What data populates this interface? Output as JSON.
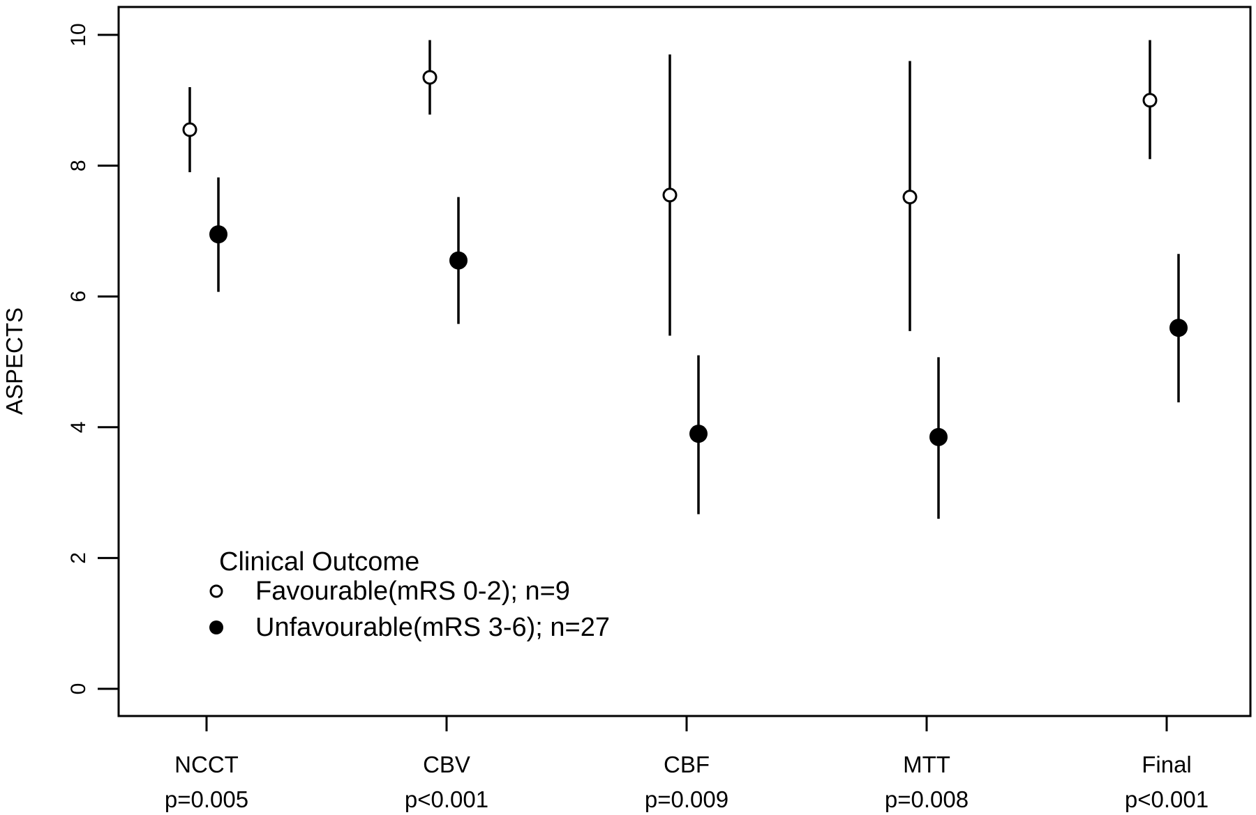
{
  "chart_data": {
    "type": "scatter",
    "title": "",
    "xlabel": "",
    "ylabel": "ASPECTS",
    "ylim": [
      0,
      10
    ],
    "yticks": [
      0,
      2,
      4,
      6,
      8,
      10
    ],
    "grid": false,
    "categories": [
      {
        "name": "NCCT",
        "pvalue": "p=0.005"
      },
      {
        "name": "CBV",
        "pvalue": "p<0.001"
      },
      {
        "name": "CBF",
        "pvalue": "p=0.009"
      },
      {
        "name": "MTT",
        "pvalue": "p=0.008"
      },
      {
        "name": "Final",
        "pvalue": "p<0.001"
      }
    ],
    "legend": {
      "title": "Clinical Outcome",
      "placement": "bottom-left"
    },
    "series": [
      {
        "name": "Favourable(mRS 0-2); n=9",
        "marker": "open-circle",
        "values": [
          8.55,
          9.35,
          7.55,
          7.52,
          9.0
        ],
        "lower": [
          7.9,
          8.78,
          5.4,
          5.47,
          8.1
        ],
        "upper": [
          9.2,
          9.92,
          9.7,
          9.6,
          9.92
        ]
      },
      {
        "name": "Unfavourable(mRS 3-6); n=27",
        "marker": "filled-circle",
        "values": [
          6.95,
          6.55,
          3.9,
          3.85,
          5.52
        ],
        "lower": [
          6.07,
          5.58,
          2.67,
          2.6,
          4.38
        ],
        "upper": [
          7.82,
          7.52,
          5.1,
          5.07,
          6.65
        ]
      }
    ]
  }
}
